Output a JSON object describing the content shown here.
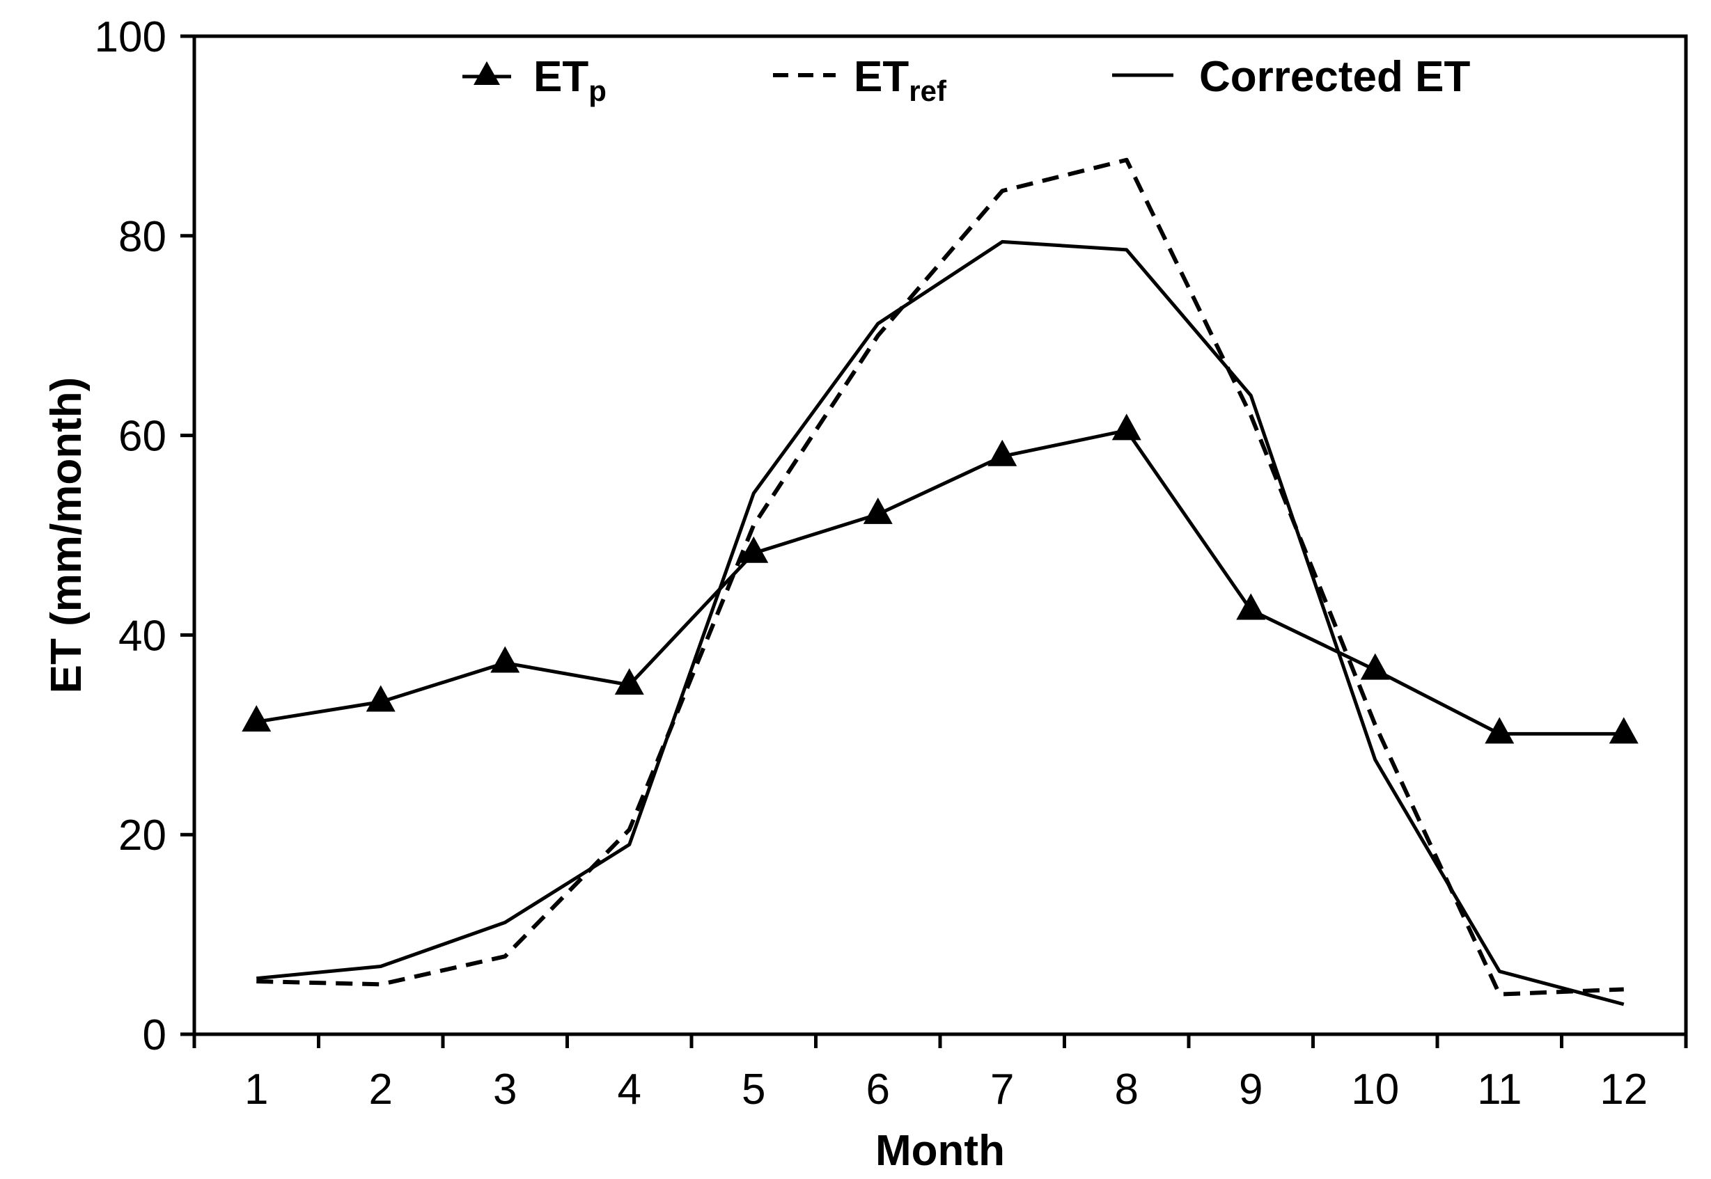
{
  "chart_data": {
    "type": "line",
    "title": "",
    "xlabel": "Month",
    "ylabel": "ET  (mm/month)",
    "xlim": [
      0.5,
      12.5
    ],
    "ylim": [
      0,
      100
    ],
    "x": [
      1,
      2,
      3,
      4,
      5,
      6,
      7,
      8,
      9,
      10,
      11,
      12
    ],
    "x_ticks": [
      "1",
      "2",
      "3",
      "4",
      "5",
      "6",
      "7",
      "8",
      "9",
      "10",
      "11",
      "12"
    ],
    "y_ticks": [
      "0",
      "20",
      "40",
      "60",
      "80",
      "100"
    ],
    "grid": false,
    "legend_position": "top-center",
    "series": [
      {
        "name": "ETp",
        "label_main": "ET",
        "label_sub": "p",
        "style": "solid-triangle-markers",
        "values": [
          31.3,
          33.3,
          37.2,
          35.0,
          48.2,
          52.1,
          57.9,
          60.5,
          42.5,
          36.5,
          30.1,
          30.1
        ]
      },
      {
        "name": "ETref",
        "label_main": "ET",
        "label_sub": "ref",
        "style": "dashed",
        "values": [
          5.3,
          5.0,
          7.8,
          20.5,
          51.0,
          70.0,
          84.5,
          87.6,
          62.0,
          31.0,
          4.0,
          4.5
        ]
      },
      {
        "name": "Corrected ET",
        "label_main": "Corrected ET",
        "label_sub": "",
        "style": "solid",
        "values": [
          5.6,
          6.8,
          11.2,
          19.0,
          54.2,
          71.2,
          79.4,
          78.6,
          64.0,
          27.5,
          6.3,
          3.0
        ]
      }
    ],
    "line_color": "#000000"
  }
}
